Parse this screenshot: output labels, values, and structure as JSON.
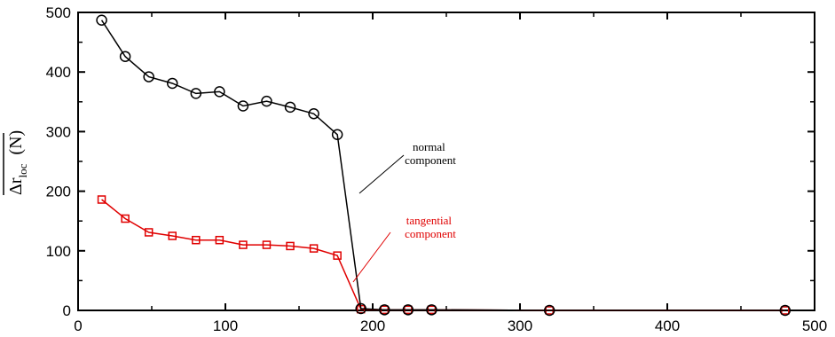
{
  "chart_data": {
    "type": "line",
    "title": "",
    "xlabel": "",
    "ylabel": "Δr",
    "ylabel_sub": "loc",
    "ylabel_unit": "(N)",
    "xlim": [
      0,
      500
    ],
    "ylim": [
      0,
      500
    ],
    "x_ticks": [
      0,
      100,
      200,
      300,
      400,
      500
    ],
    "y_ticks": [
      0,
      100,
      200,
      300,
      400,
      500
    ],
    "grid": false,
    "series": [
      {
        "color": "#000000",
        "marker": "circle",
        "x": [
          16,
          32,
          48,
          64,
          80,
          96,
          112,
          128,
          144,
          160,
          176,
          192,
          208,
          224,
          240,
          320,
          480
        ],
        "y": [
          487,
          426,
          392,
          381,
          364,
          367,
          343,
          351,
          341,
          330,
          295,
          3,
          1,
          1,
          1,
          0,
          0
        ]
      },
      {
        "color": "#e00000",
        "marker": "square",
        "x": [
          16,
          32,
          48,
          64,
          80,
          96,
          112,
          128,
          144,
          160,
          176,
          192,
          208,
          224,
          240,
          320,
          480
        ],
        "y": [
          186,
          154,
          131,
          125,
          118,
          118,
          110,
          110,
          108,
          104,
          92,
          2,
          1,
          1,
          1,
          0,
          0
        ]
      }
    ],
    "annotations": [
      {
        "lines": [
          "normal",
          "component"
        ],
        "color": "#000000"
      },
      {
        "lines": [
          "tangential",
          "component"
        ],
        "color": "#e00000"
      }
    ]
  }
}
